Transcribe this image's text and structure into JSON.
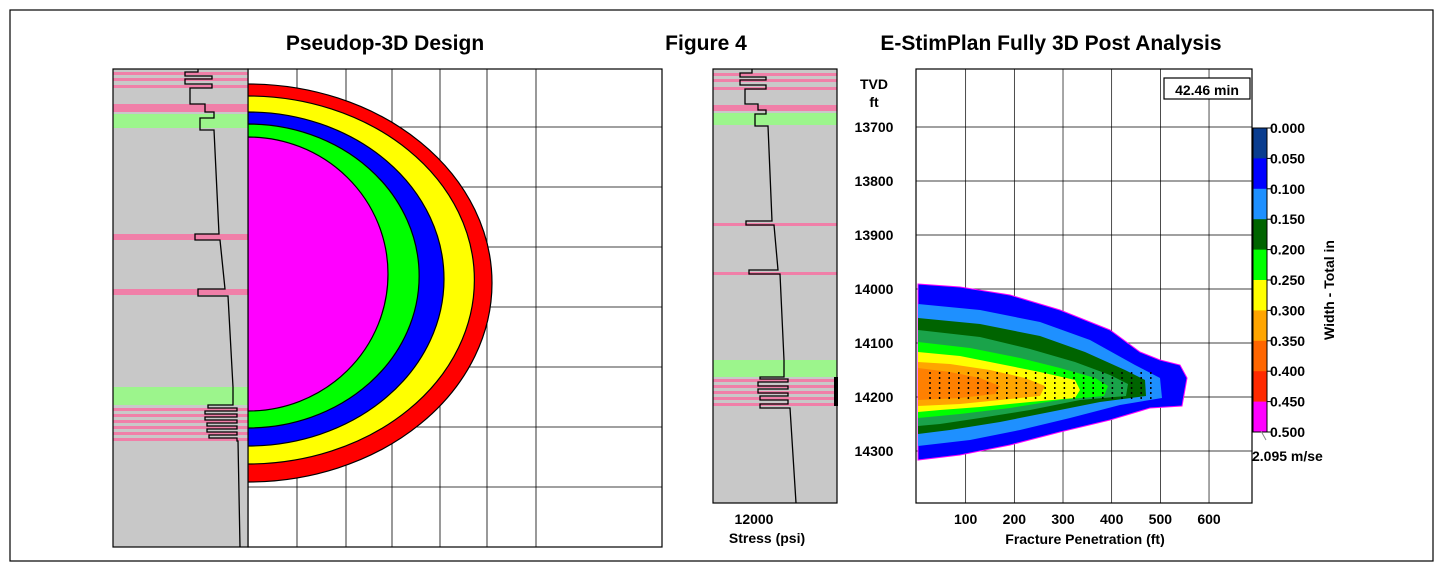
{
  "titles": {
    "left": "Pseudop-3D Design",
    "center": "Figure 4",
    "right": "E-StimPlan Fully 3D Post Analysis"
  },
  "colors": {
    "gray": "#c8c8c8",
    "pink": "#f07fa8",
    "green_band": "#9cf58c",
    "ring_red": "#ff0000",
    "ring_yellow": "#ffff00",
    "ring_blue": "#0000ff",
    "ring_green": "#00ff00",
    "ring_magenta": "#ff00ff"
  },
  "stress_axis": {
    "tick_label": "12000",
    "xlabel": "Stress (psi)"
  },
  "chart_data": {
    "type": "heatmap",
    "xlabel": "Fracture Penetration (ft)",
    "ylabel_top": "TVD",
    "ylabel_unit": "ft",
    "x_ticks": [
      "100",
      "200",
      "300",
      "400",
      "500",
      "600"
    ],
    "y_ticks": [
      "13700",
      "13800",
      "13900",
      "14000",
      "14100",
      "14200",
      "14300"
    ],
    "time_label": "42.46 min",
    "colorbar": {
      "label": "Width - Total in",
      "ticks": [
        "0.000",
        "0.050",
        "0.100",
        "0.150",
        "0.200",
        "0.250",
        "0.300",
        "0.350",
        "0.400",
        "0.450",
        "0.500"
      ],
      "colors": [
        "#0a3d8f",
        "#0000ff",
        "#1e90ff",
        "#006400",
        "#00ff00",
        "#ffff00",
        "#ffa500",
        "#ff6600",
        "#ff2a00",
        "#ff00ff"
      ],
      "footer": "2.095 m/se"
    }
  }
}
